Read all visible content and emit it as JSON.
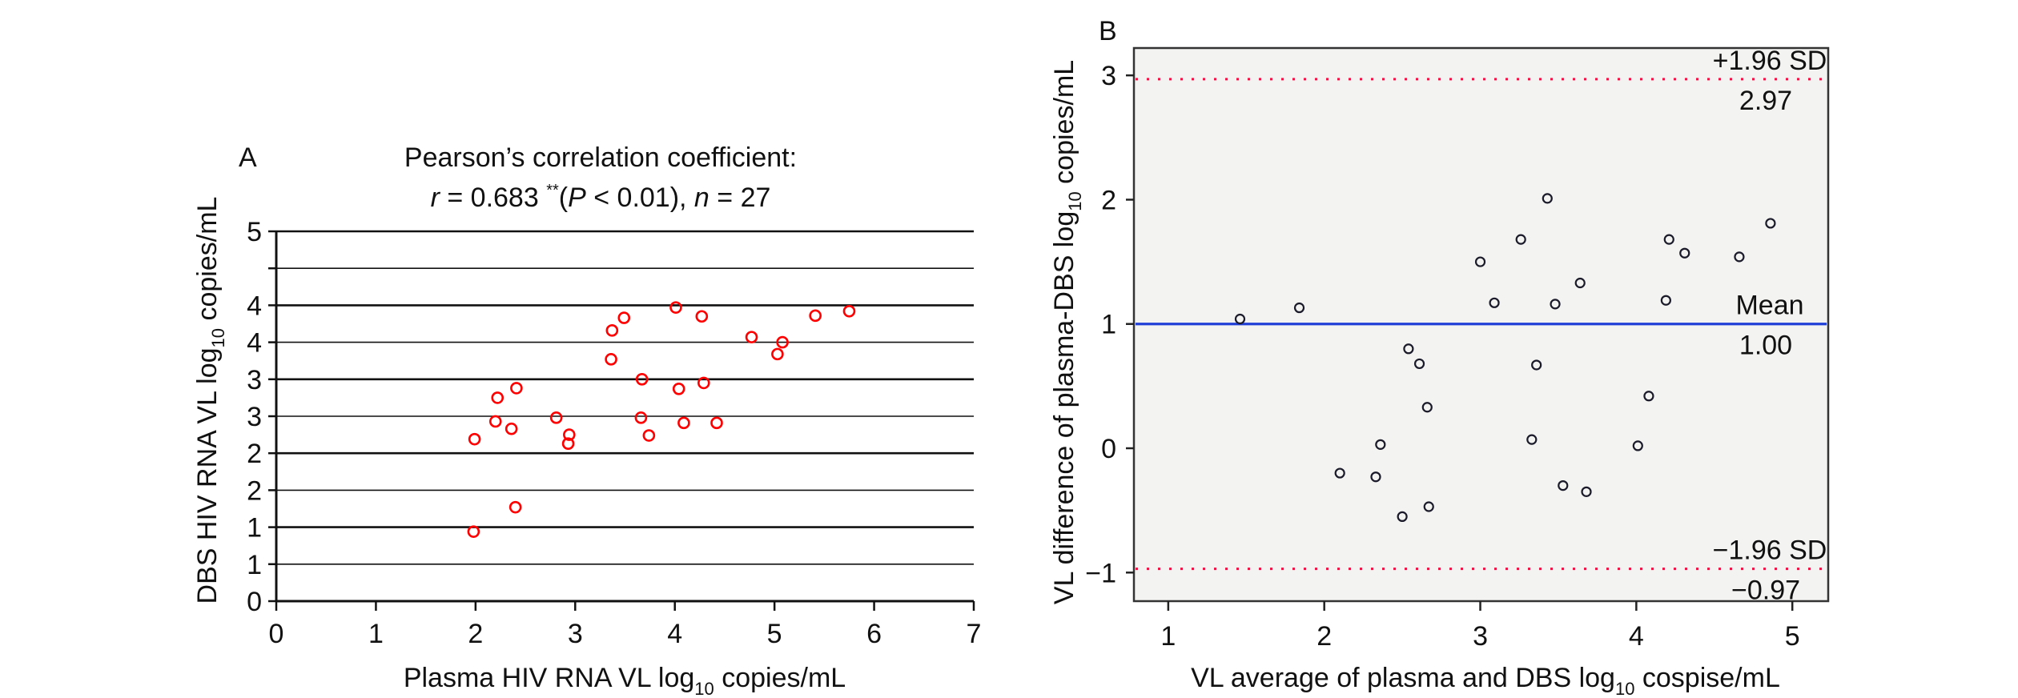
{
  "chart_data": [
    {
      "panel": "A",
      "type": "scatter",
      "title_line1": "Pearson’s correlation coefficient:",
      "title_line2": {
        "r_symbol": "r",
        "r_text": " = 0.683 ",
        "stars": "**",
        "p_open": "(",
        "p_symbol": "P",
        "p_text": " < 0.01), ",
        "n_symbol": "n",
        "n_text": " = 27"
      },
      "xlabel": {
        "pre": "Plasma HIV RNA VL log",
        "sub": "10",
        "post": " copies/mL"
      },
      "ylabel": {
        "pre": "DBS HIV RNA VL log",
        "sub": "10",
        "post": " copies/mL"
      },
      "xlim": [
        0,
        7
      ],
      "ylim": [
        0,
        5
      ],
      "xticks": [
        0,
        1,
        2,
        3,
        4,
        5,
        6,
        7
      ],
      "xtick_labels": [
        "0",
        "1",
        "2",
        "3",
        "4",
        "5",
        "6",
        "7"
      ],
      "yticks": [
        0,
        0.5,
        1,
        1.5,
        2,
        2.5,
        3,
        3.5,
        4,
        4.5,
        5
      ],
      "ytick_labels": [
        "0",
        "1",
        "1",
        "2",
        "2",
        "3",
        "3",
        "4",
        "4",
        "5"
      ],
      "ytick_label_values": [
        0,
        0.5,
        1,
        1.5,
        2,
        2.5,
        3,
        3.5,
        4,
        5
      ],
      "grid": "horizontal",
      "marker": "open-circle",
      "marker_color": "#ff0000",
      "points": [
        {
          "x": 4.01,
          "y": 3.97
        },
        {
          "x": 3.49,
          "y": 3.83
        },
        {
          "x": 4.27,
          "y": 3.85
        },
        {
          "x": 3.37,
          "y": 3.66
        },
        {
          "x": 4.77,
          "y": 3.57
        },
        {
          "x": 3.36,
          "y": 3.27
        },
        {
          "x": 3.67,
          "y": 3.0
        },
        {
          "x": 4.29,
          "y": 2.95
        },
        {
          "x": 4.04,
          "y": 2.87
        },
        {
          "x": 2.41,
          "y": 2.88
        },
        {
          "x": 2.22,
          "y": 2.75
        },
        {
          "x": 2.2,
          "y": 2.43
        },
        {
          "x": 2.81,
          "y": 2.48
        },
        {
          "x": 3.66,
          "y": 2.48
        },
        {
          "x": 4.09,
          "y": 2.41
        },
        {
          "x": 4.42,
          "y": 2.41
        },
        {
          "x": 2.36,
          "y": 2.33
        },
        {
          "x": 1.99,
          "y": 2.19
        },
        {
          "x": 2.94,
          "y": 2.25
        },
        {
          "x": 2.93,
          "y": 2.13
        },
        {
          "x": 3.74,
          "y": 2.24
        },
        {
          "x": 5.41,
          "y": 3.86
        },
        {
          "x": 5.75,
          "y": 3.92
        },
        {
          "x": 5.08,
          "y": 3.5
        },
        {
          "x": 5.03,
          "y": 3.34
        },
        {
          "x": 2.4,
          "y": 1.27
        },
        {
          "x": 1.98,
          "y": 0.94
        }
      ]
    },
    {
      "panel": "B",
      "type": "scatter",
      "subtype": "bland-altman",
      "xlabel": {
        "pre": "VL average of plasma and DBS log",
        "sub": "10",
        "post": " cospise/mL"
      },
      "ylabel": {
        "pre": "VL difference of plasma-DBS log",
        "sub": "10",
        "post": " copies/mL"
      },
      "xlim": [
        0.78,
        5.23
      ],
      "ylim": [
        -1.23,
        3.22
      ],
      "xticks": [
        1,
        2,
        3,
        4,
        5
      ],
      "xtick_labels": [
        "1",
        "2",
        "3",
        "4",
        "5"
      ],
      "yticks": [
        -1,
        0,
        1,
        2,
        3
      ],
      "ytick_labels": [
        "−1",
        "0",
        "1",
        "2",
        "3"
      ],
      "background": "#f3f3f1",
      "marker": "open-circle",
      "marker_color": "#1a1a2a",
      "reference_lines": [
        {
          "name": "upper-limit",
          "y": 2.97,
          "style": "dotted",
          "color": "#ee1144",
          "label_above": "+1.96 SD",
          "label_below": "2.97"
        },
        {
          "name": "mean",
          "y": 1.0,
          "style": "solid",
          "color": "#1f3fd6",
          "label_above": "Mean",
          "label_below": "1.00"
        },
        {
          "name": "lower-limit",
          "y": -0.97,
          "style": "dotted",
          "color": "#ee1144",
          "label_above": "−1.96 SD",
          "label_below": "−0.97"
        }
      ],
      "points": [
        {
          "x": 1.46,
          "y": 1.04
        },
        {
          "x": 1.84,
          "y": 1.13
        },
        {
          "x": 2.54,
          "y": 0.8
        },
        {
          "x": 2.61,
          "y": 0.68
        },
        {
          "x": 2.66,
          "y": 0.33
        },
        {
          "x": 2.36,
          "y": 0.03
        },
        {
          "x": 2.1,
          "y": -0.2
        },
        {
          "x": 2.33,
          "y": -0.23
        },
        {
          "x": 2.67,
          "y": -0.47
        },
        {
          "x": 2.5,
          "y": -0.55
        },
        {
          "x": 3.43,
          "y": 2.01
        },
        {
          "x": 3.26,
          "y": 1.68
        },
        {
          "x": 3.0,
          "y": 1.5
        },
        {
          "x": 3.64,
          "y": 1.33
        },
        {
          "x": 3.09,
          "y": 1.17
        },
        {
          "x": 3.48,
          "y": 1.16
        },
        {
          "x": 4.21,
          "y": 1.68
        },
        {
          "x": 4.19,
          "y": 1.19
        },
        {
          "x": 3.36,
          "y": 0.67
        },
        {
          "x": 4.08,
          "y": 0.42
        },
        {
          "x": 3.33,
          "y": 0.07
        },
        {
          "x": 4.01,
          "y": 0.02
        },
        {
          "x": 3.53,
          "y": -0.3
        },
        {
          "x": 3.68,
          "y": -0.35
        },
        {
          "x": 4.31,
          "y": 1.57
        },
        {
          "x": 4.66,
          "y": 1.54
        },
        {
          "x": 4.86,
          "y": 1.81
        }
      ]
    }
  ],
  "panels": {
    "a_letter": "A",
    "b_letter": "B"
  }
}
